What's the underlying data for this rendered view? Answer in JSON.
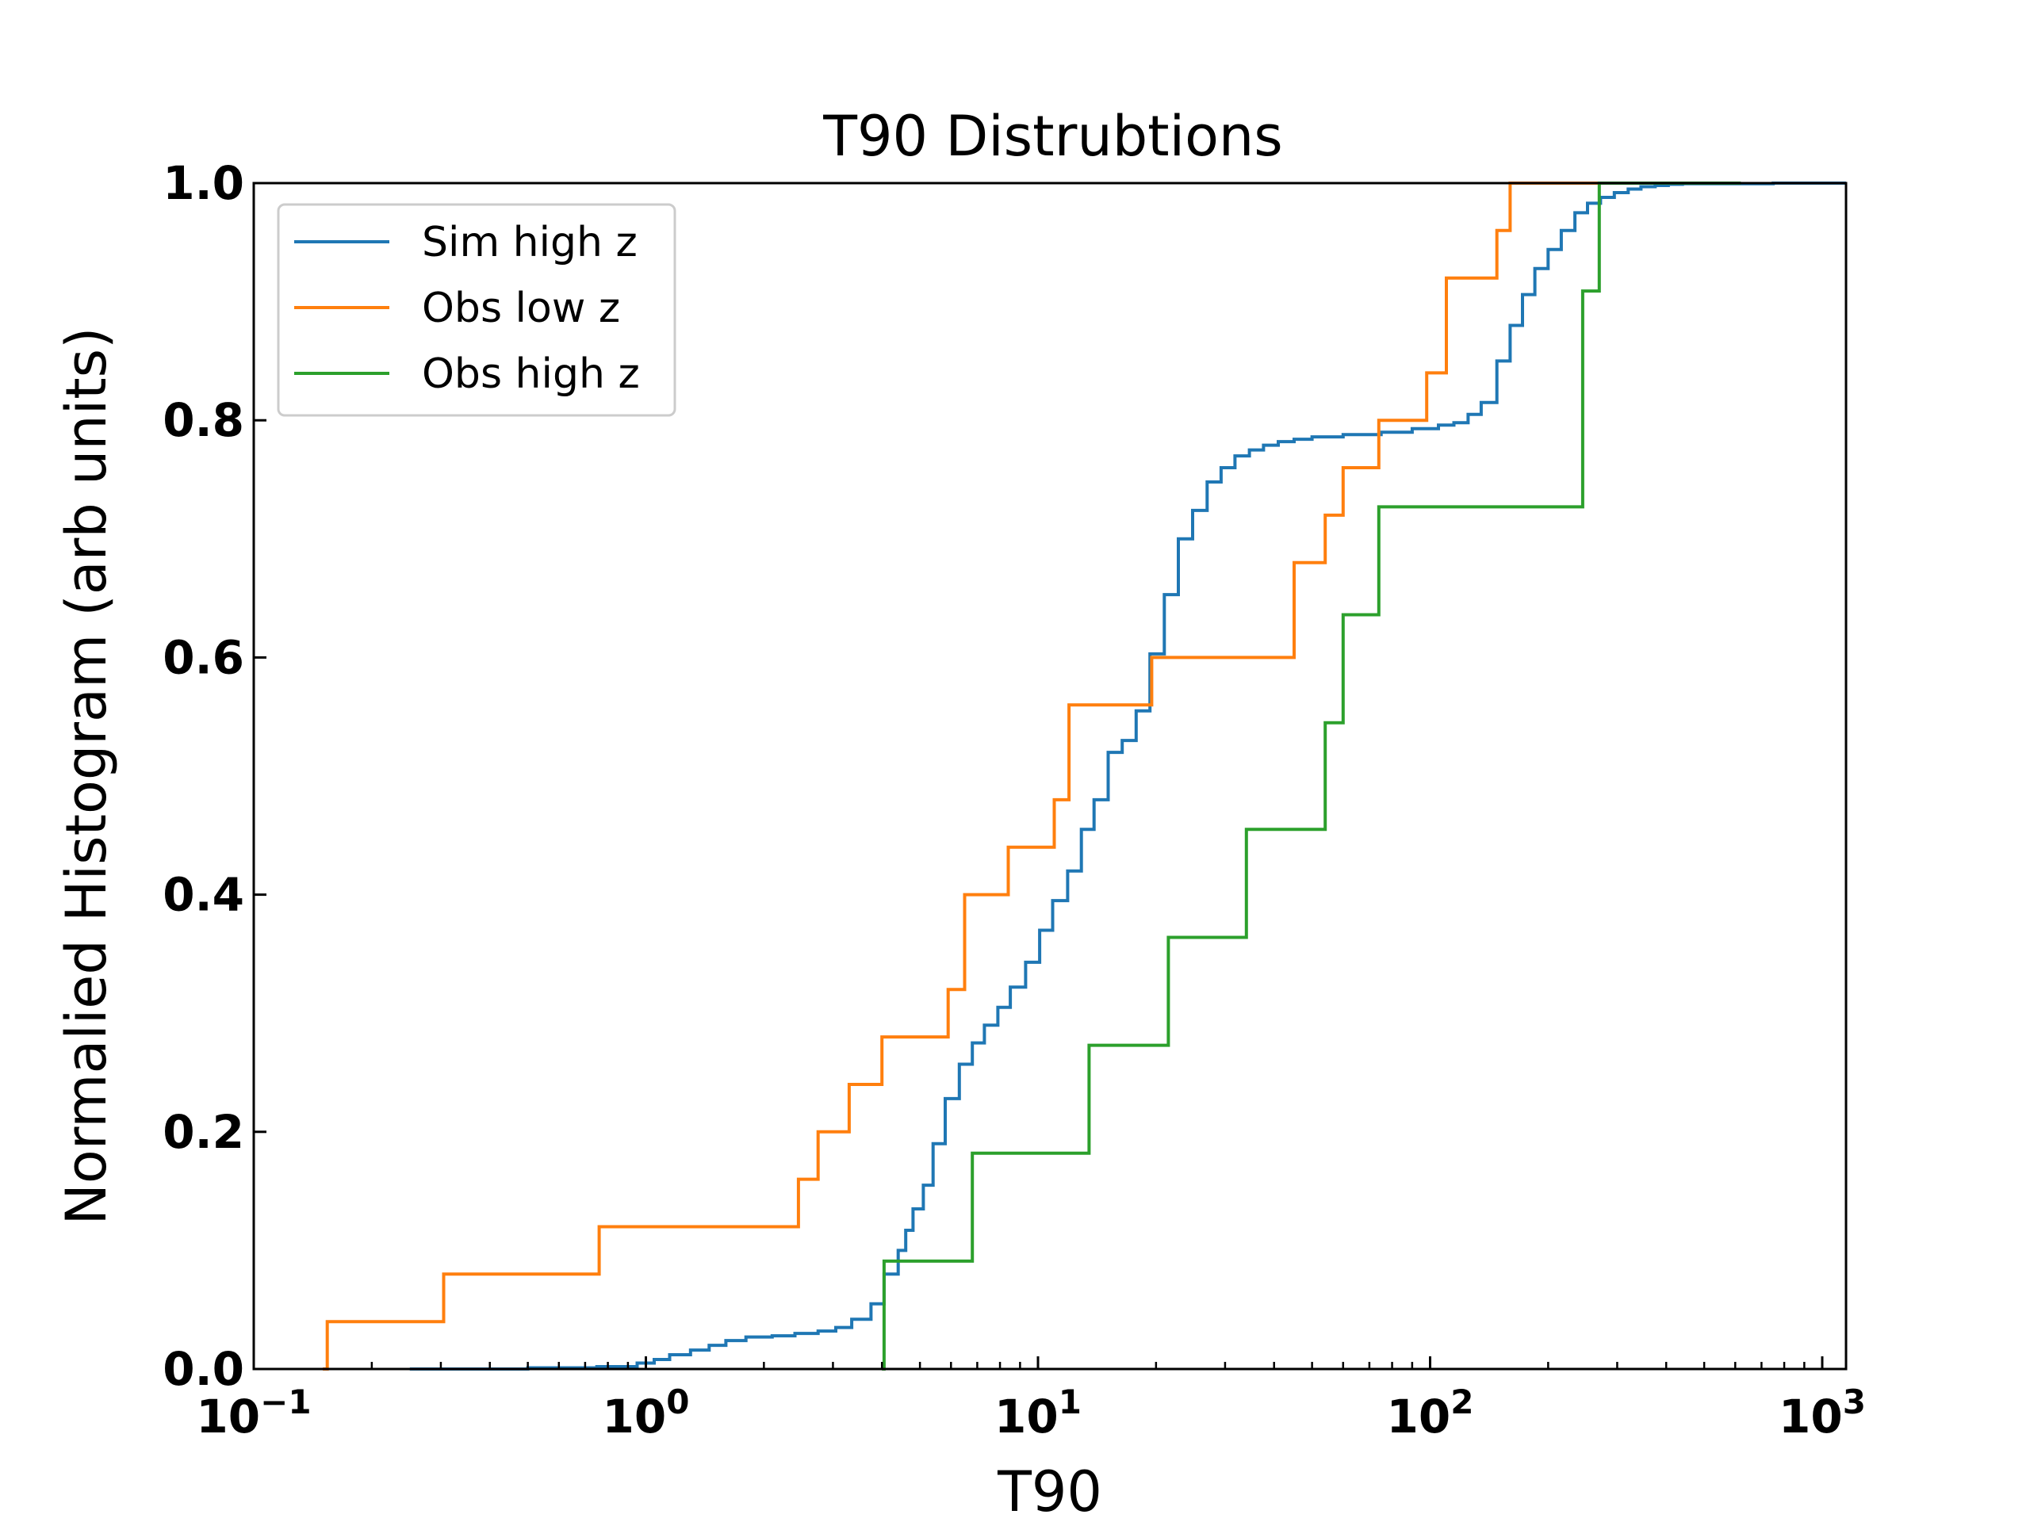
{
  "chart_data": {
    "type": "line",
    "title": "T90 Distrubtions",
    "xlabel": "T90",
    "ylabel": "Normalied Histogram (arb units)",
    "x_scale": "log",
    "xlim": [
      0.1,
      1150
    ],
    "ylim": [
      0,
      1.0
    ],
    "grid": false,
    "legend_position": "top-left",
    "y_ticks": [
      {
        "value": 0.0,
        "label": "0.0"
      },
      {
        "value": 0.2,
        "label": "0.2"
      },
      {
        "value": 0.4,
        "label": "0.4"
      },
      {
        "value": 0.6,
        "label": "0.6"
      },
      {
        "value": 0.8,
        "label": "0.8"
      },
      {
        "value": 1.0,
        "label": "1.0"
      }
    ],
    "x_ticks": [
      {
        "value": 0.1,
        "base": "10",
        "exp": "−1"
      },
      {
        "value": 1,
        "base": "10",
        "exp": "0"
      },
      {
        "value": 10,
        "base": "10",
        "exp": "1"
      },
      {
        "value": 100,
        "base": "10",
        "exp": "2"
      },
      {
        "value": 1000,
        "base": "10",
        "exp": "3"
      }
    ],
    "series": [
      {
        "name": "Sim high z",
        "color": "#1f77b4",
        "steps": [
          [
            0.25,
            0.0
          ],
          [
            0.5,
            0.001
          ],
          [
            0.75,
            0.002
          ],
          [
            0.95,
            0.005
          ],
          [
            1.05,
            0.008
          ],
          [
            1.15,
            0.012
          ],
          [
            1.3,
            0.016
          ],
          [
            1.45,
            0.02
          ],
          [
            1.6,
            0.024
          ],
          [
            1.8,
            0.027
          ],
          [
            2.1,
            0.028
          ],
          [
            2.4,
            0.03
          ],
          [
            2.75,
            0.032
          ],
          [
            3.05,
            0.035
          ],
          [
            3.35,
            0.042
          ],
          [
            3.75,
            0.055
          ],
          [
            4.05,
            0.08
          ],
          [
            4.4,
            0.1
          ],
          [
            4.6,
            0.117
          ],
          [
            4.8,
            0.135
          ],
          [
            5.1,
            0.155
          ],
          [
            5.4,
            0.19
          ],
          [
            5.8,
            0.228
          ],
          [
            6.3,
            0.257
          ],
          [
            6.8,
            0.275
          ],
          [
            7.3,
            0.29
          ],
          [
            7.9,
            0.305
          ],
          [
            8.5,
            0.322
          ],
          [
            9.3,
            0.343
          ],
          [
            10.1,
            0.37
          ],
          [
            10.9,
            0.395
          ],
          [
            11.9,
            0.42
          ],
          [
            12.9,
            0.455
          ],
          [
            13.9,
            0.48
          ],
          [
            15.1,
            0.52
          ],
          [
            16.4,
            0.53
          ],
          [
            17.8,
            0.555
          ],
          [
            19.3,
            0.603
          ],
          [
            21.0,
            0.653
          ],
          [
            22.8,
            0.7
          ],
          [
            24.8,
            0.724
          ],
          [
            27.0,
            0.748
          ],
          [
            29.3,
            0.76
          ],
          [
            31.8,
            0.77
          ],
          [
            34.6,
            0.775
          ],
          [
            37.6,
            0.779
          ],
          [
            41.0,
            0.782
          ],
          [
            45.0,
            0.784
          ],
          [
            50.0,
            0.786
          ],
          [
            60.0,
            0.788
          ],
          [
            75.0,
            0.79
          ],
          [
            90.0,
            0.793
          ],
          [
            105.0,
            0.796
          ],
          [
            115.0,
            0.798
          ],
          [
            125.0,
            0.805
          ],
          [
            135.0,
            0.815
          ],
          [
            148.0,
            0.85
          ],
          [
            160.0,
            0.88
          ],
          [
            172.0,
            0.906
          ],
          [
            185.0,
            0.928
          ],
          [
            200.0,
            0.944
          ],
          [
            216.0,
            0.96
          ],
          [
            234.0,
            0.975
          ],
          [
            252.0,
            0.983
          ],
          [
            272.0,
            0.988
          ],
          [
            295.0,
            0.992
          ],
          [
            320.0,
            0.995
          ],
          [
            345.0,
            0.997
          ],
          [
            375.0,
            0.998
          ],
          [
            405.0,
            0.999
          ],
          [
            440.0,
            0.9995
          ],
          [
            750.0,
            1.0
          ],
          [
            1150.0,
            1.0
          ]
        ]
      },
      {
        "name": "Obs low z",
        "color": "#ff7f0e",
        "steps": [
          [
            0.15,
            0.0
          ],
          [
            0.154,
            0.04
          ],
          [
            0.305,
            0.08
          ],
          [
            0.76,
            0.12
          ],
          [
            2.45,
            0.16
          ],
          [
            2.75,
            0.2
          ],
          [
            3.3,
            0.24
          ],
          [
            4.0,
            0.28
          ],
          [
            5.9,
            0.32
          ],
          [
            6.5,
            0.4
          ],
          [
            8.4,
            0.44
          ],
          [
            11.0,
            0.48
          ],
          [
            12.0,
            0.56
          ],
          [
            19.5,
            0.6
          ],
          [
            45.0,
            0.68
          ],
          [
            54.0,
            0.72
          ],
          [
            60.0,
            0.76
          ],
          [
            74.0,
            0.8
          ],
          [
            98.0,
            0.84
          ],
          [
            110.0,
            0.92
          ],
          [
            148.0,
            0.96
          ],
          [
            160.0,
            1.0
          ],
          [
            270.0,
            1.0
          ]
        ]
      },
      {
        "name": "Obs high z",
        "color": "#2ca02c",
        "steps": [
          [
            4.0,
            0.0
          ],
          [
            4.05,
            0.091
          ],
          [
            6.8,
            0.182
          ],
          [
            13.5,
            0.273
          ],
          [
            21.5,
            0.364
          ],
          [
            34.0,
            0.455
          ],
          [
            54.0,
            0.545
          ],
          [
            60.0,
            0.636
          ],
          [
            74.0,
            0.727
          ],
          [
            245.0,
            0.909
          ],
          [
            270.0,
            1.0
          ],
          [
            620.0,
            1.0
          ]
        ]
      }
    ]
  }
}
